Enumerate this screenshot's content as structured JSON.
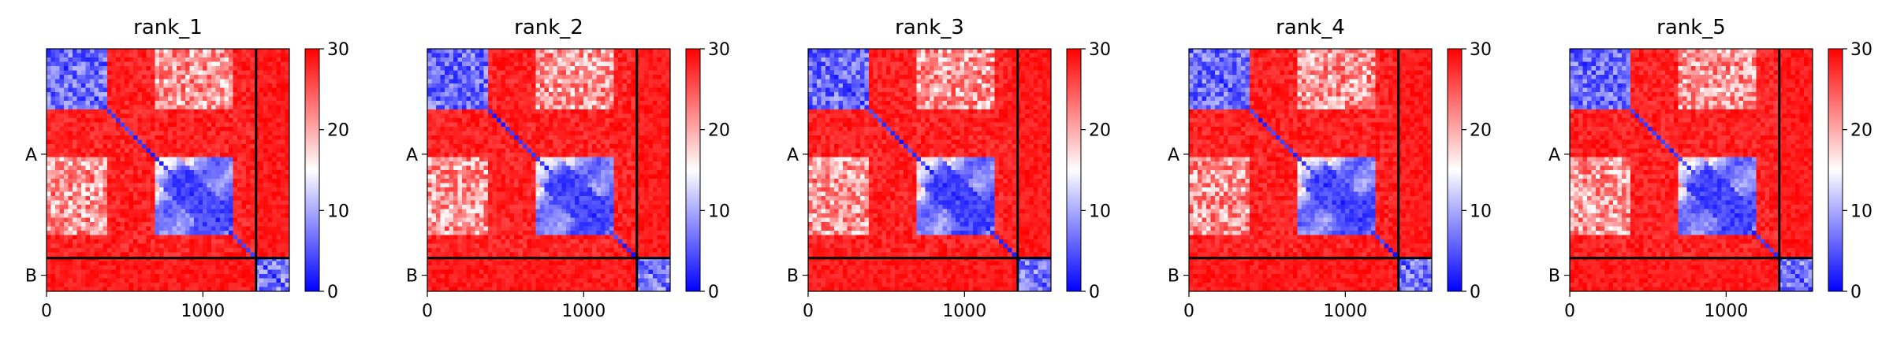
{
  "chart_data": [
    {
      "type": "heatmap",
      "title": "rank_1",
      "seed": 11,
      "colorbar": {
        "range": [
          0,
          30
        ],
        "ticks": [
          "0",
          "10",
          "20",
          "30"
        ],
        "colors": [
          "#0000ff",
          "#ffffff",
          "#ff0000"
        ]
      },
      "x_ticks": [
        {
          "value": 0,
          "label": "0"
        },
        {
          "value": 1000,
          "label": "1000"
        }
      ],
      "y_ticks": [
        {
          "value": 675,
          "label": "A"
        },
        {
          "value": 1450,
          "label": "B"
        }
      ],
      "xlim": [
        0,
        1553
      ],
      "ylim": [
        1553,
        0
      ],
      "chain_boundaries": [
        1340
      ]
    },
    {
      "type": "heatmap",
      "title": "rank_2",
      "seed": 23,
      "colorbar": {
        "range": [
          0,
          30
        ],
        "ticks": [
          "0",
          "10",
          "20",
          "30"
        ],
        "colors": [
          "#0000ff",
          "#ffffff",
          "#ff0000"
        ]
      },
      "x_ticks": [
        {
          "value": 0,
          "label": "0"
        },
        {
          "value": 1000,
          "label": "1000"
        }
      ],
      "y_ticks": [
        {
          "value": 675,
          "label": "A"
        },
        {
          "value": 1450,
          "label": "B"
        }
      ],
      "xlim": [
        0,
        1553
      ],
      "ylim": [
        1553,
        0
      ],
      "chain_boundaries": [
        1340
      ]
    },
    {
      "type": "heatmap",
      "title": "rank_3",
      "seed": 37,
      "colorbar": {
        "range": [
          0,
          30
        ],
        "ticks": [
          "0",
          "10",
          "20",
          "30"
        ],
        "colors": [
          "#0000ff",
          "#ffffff",
          "#ff0000"
        ]
      },
      "x_ticks": [
        {
          "value": 0,
          "label": "0"
        },
        {
          "value": 1000,
          "label": "1000"
        }
      ],
      "y_ticks": [
        {
          "value": 675,
          "label": "A"
        },
        {
          "value": 1450,
          "label": "B"
        }
      ],
      "xlim": [
        0,
        1553
      ],
      "ylim": [
        1553,
        0
      ],
      "chain_boundaries": [
        1340
      ]
    },
    {
      "type": "heatmap",
      "title": "rank_4",
      "seed": 41,
      "colorbar": {
        "range": [
          0,
          30
        ],
        "ticks": [
          "0",
          "10",
          "20",
          "30"
        ],
        "colors": [
          "#0000ff",
          "#ffffff",
          "#ff0000"
        ]
      },
      "x_ticks": [
        {
          "value": 0,
          "label": "0"
        },
        {
          "value": 1000,
          "label": "1000"
        }
      ],
      "y_ticks": [
        {
          "value": 675,
          "label": "A"
        },
        {
          "value": 1450,
          "label": "B"
        }
      ],
      "xlim": [
        0,
        1553
      ],
      "ylim": [
        1553,
        0
      ],
      "chain_boundaries": [
        1340
      ]
    },
    {
      "type": "heatmap",
      "title": "rank_5",
      "seed": 53,
      "colorbar": {
        "range": [
          0,
          30
        ],
        "ticks": [
          "0",
          "10",
          "20",
          "30"
        ],
        "colors": [
          "#0000ff",
          "#ffffff",
          "#ff0000"
        ]
      },
      "x_ticks": [
        {
          "value": 0,
          "label": "0"
        },
        {
          "value": 1000,
          "label": "1000"
        }
      ],
      "y_ticks": [
        {
          "value": 675,
          "label": "A"
        },
        {
          "value": 1450,
          "label": "B"
        }
      ],
      "xlim": [
        0,
        1553
      ],
      "ylim": [
        1553,
        0
      ],
      "chain_boundaries": [
        1340
      ]
    }
  ]
}
